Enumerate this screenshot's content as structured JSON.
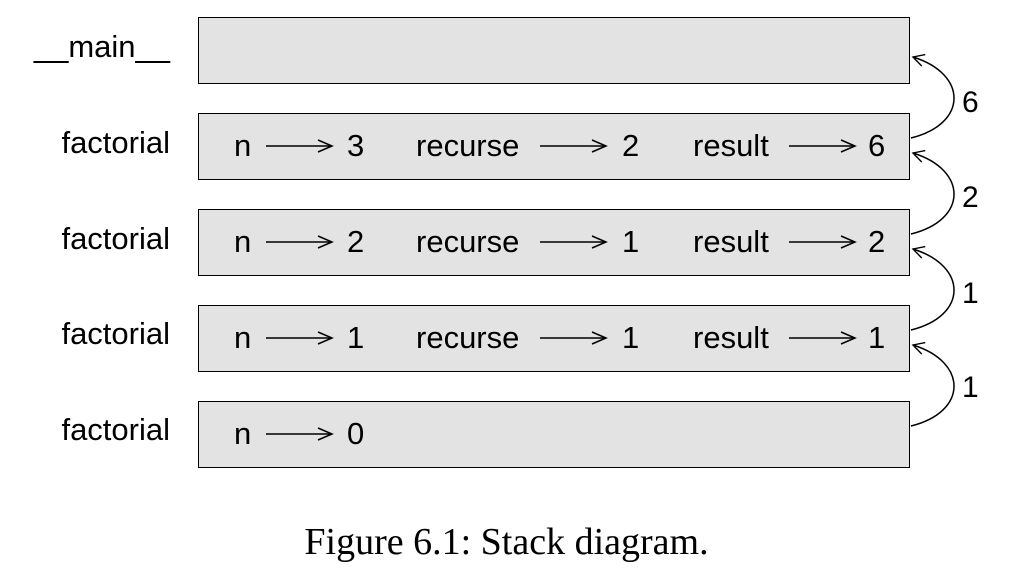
{
  "frames": [
    {
      "label": "__main__",
      "vars": []
    },
    {
      "label": "factorial",
      "vars": [
        {
          "name": "n",
          "value": "3"
        },
        {
          "name": "recurse",
          "value": "2"
        },
        {
          "name": "result",
          "value": "6"
        }
      ]
    },
    {
      "label": "factorial",
      "vars": [
        {
          "name": "n",
          "value": "2"
        },
        {
          "name": "recurse",
          "value": "1"
        },
        {
          "name": "result",
          "value": "2"
        }
      ]
    },
    {
      "label": "factorial",
      "vars": [
        {
          "name": "n",
          "value": "1"
        },
        {
          "name": "recurse",
          "value": "1"
        },
        {
          "name": "result",
          "value": "1"
        }
      ]
    },
    {
      "label": "factorial",
      "vars": [
        {
          "name": "n",
          "value": "0"
        }
      ]
    }
  ],
  "return_values": [
    "6",
    "2",
    "1",
    "1"
  ],
  "caption": "Figure 6.1: Stack diagram."
}
